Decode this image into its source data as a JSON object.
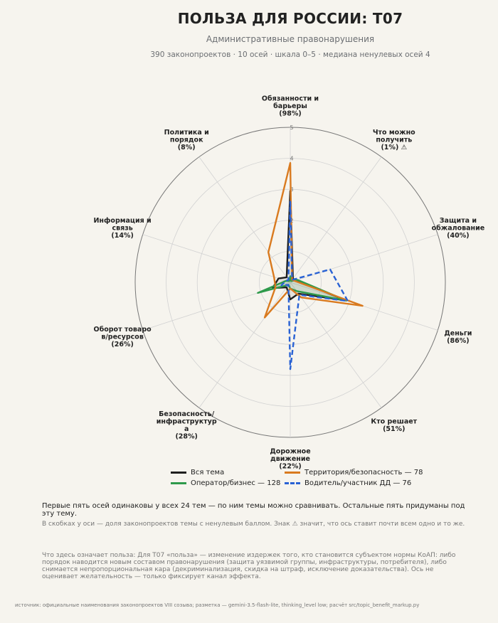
{
  "header": {
    "title": "ПОЛЬЗА ДЛЯ РОССИИ: Т07",
    "subtitle": "Административные правонарушения",
    "meta": "390 законопроектов · 10 осей · шкала 0–5 · медиана ненулевых осей 4"
  },
  "chart_data": {
    "type": "radar",
    "scale": [
      0,
      5
    ],
    "ticks": [
      "1",
      "2",
      "3",
      "4",
      "5"
    ],
    "axes": [
      {
        "label": [
          "Обязанности и",
          "барьеры",
          "(98%)"
        ]
      },
      {
        "label": [
          "Что можно",
          "получить",
          "(1%)  ⚠"
        ]
      },
      {
        "label": [
          "Защита и",
          "обжалование",
          "(40%)"
        ]
      },
      {
        "label": [
          "Деньги",
          "(86%)"
        ]
      },
      {
        "label": [
          "Кто решает",
          "(51%)"
        ]
      },
      {
        "label": [
          "Дорожное",
          "движение",
          "(22%)"
        ]
      },
      {
        "label": [
          "Безопасность/",
          "инфраструктур",
          "а",
          "(28%)"
        ]
      },
      {
        "label": [
          "Оборот товаро",
          "в/ресурсов",
          "(26%)"
        ]
      },
      {
        "label": [
          "Информация и",
          "связь",
          "(14%)"
        ]
      },
      {
        "label": [
          "Политика и",
          "порядок",
          "(8%)"
        ]
      }
    ],
    "series": [
      {
        "name": "Вся тема",
        "color": "#1f1f1f",
        "dash": false,
        "fill": true,
        "values": [
          2.95,
          0.15,
          0.2,
          1.9,
          0.45,
          0.55,
          0.2,
          0.6,
          0.4,
          0.2
        ]
      },
      {
        "name": "Оператор/бизнес — 128",
        "color": "#2e9a4b",
        "dash": false,
        "fill": true,
        "values": [
          0.2,
          0.05,
          0.25,
          1.9,
          0.35,
          0.2,
          0.1,
          1.1,
          0.15,
          0.05
        ]
      },
      {
        "name": "Территория/безопасность — 78",
        "color": "#d97a1f",
        "dash": false,
        "fill": false,
        "values": [
          3.85,
          0.1,
          0.15,
          2.45,
          0.6,
          0.2,
          1.4,
          0.5,
          0.55,
          1.2
        ]
      },
      {
        "name": "Водитель/участник ДД — 76",
        "color": "#2962d4",
        "dash": true,
        "fill": false,
        "values": [
          2.6,
          0.1,
          1.35,
          1.95,
          0.5,
          2.8,
          0.1,
          0.3,
          0.15,
          0.1
        ]
      }
    ]
  },
  "notes": {
    "note1": "Первые пять осей одинаковы у всех 24 тем — по ним темы можно сравнивать. Остальные пять придуманы под эту тему.",
    "note2": "В скобках у оси — доля законопроектов темы с ненулевым баллом. Знак ⚠ значит, что ось ставит почти всем одно и то же.",
    "note3": "Что здесь означает польза: Для Т07 «польза» — изменение издержек того, кто становится субъектом нормы КоАП: либо порядок наводится новым составом правонарушения (защита уязвимой группы, инфраструктуры, потребителя), либо снимается непропорциональная кара (декриминализация, скидка на штраф, исключение доказательства). Ось не оценивает желательность — только фиксирует канал эффекта.",
    "source": "источник: официальные наименования законопроектов VIII созыва; разметка — gemini-3.5-flash-lite, thinking_level low; расчёт src/topic_benefit_markup.py"
  }
}
